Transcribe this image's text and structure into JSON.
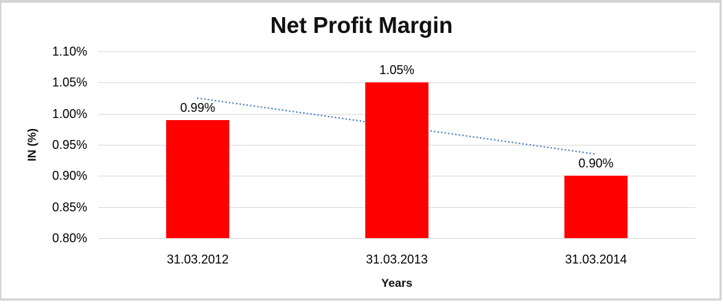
{
  "chart_data": {
    "type": "bar",
    "title": "Net Profit Margin",
    "xlabel": "Years",
    "ylabel": "IN (%)",
    "categories": [
      "31.03.2012",
      "31.03.2013",
      "31.03.2014"
    ],
    "values": [
      0.99,
      1.05,
      0.9
    ],
    "data_labels": [
      "0.99%",
      "1.05%",
      "0.90%"
    ],
    "y_ticks": [
      {
        "value": 1.1,
        "label": "1.10%"
      },
      {
        "value": 1.05,
        "label": "1.05%"
      },
      {
        "value": 1.0,
        "label": "1.00%"
      },
      {
        "value": 0.95,
        "label": "0.95%"
      },
      {
        "value": 0.9,
        "label": "0.90%"
      },
      {
        "value": 0.85,
        "label": "0.85%"
      },
      {
        "value": 0.8,
        "label": "0.80%"
      }
    ],
    "ylim": [
      0.8,
      1.1
    ],
    "grid": true,
    "legend": "none",
    "bar_color": "#fe0000",
    "gridline_color": "#d9d9d9",
    "trendline": {
      "type": "linear",
      "style": "dotted",
      "color": "#4e86c8",
      "start_value": 1.025,
      "end_value": 0.935
    }
  }
}
